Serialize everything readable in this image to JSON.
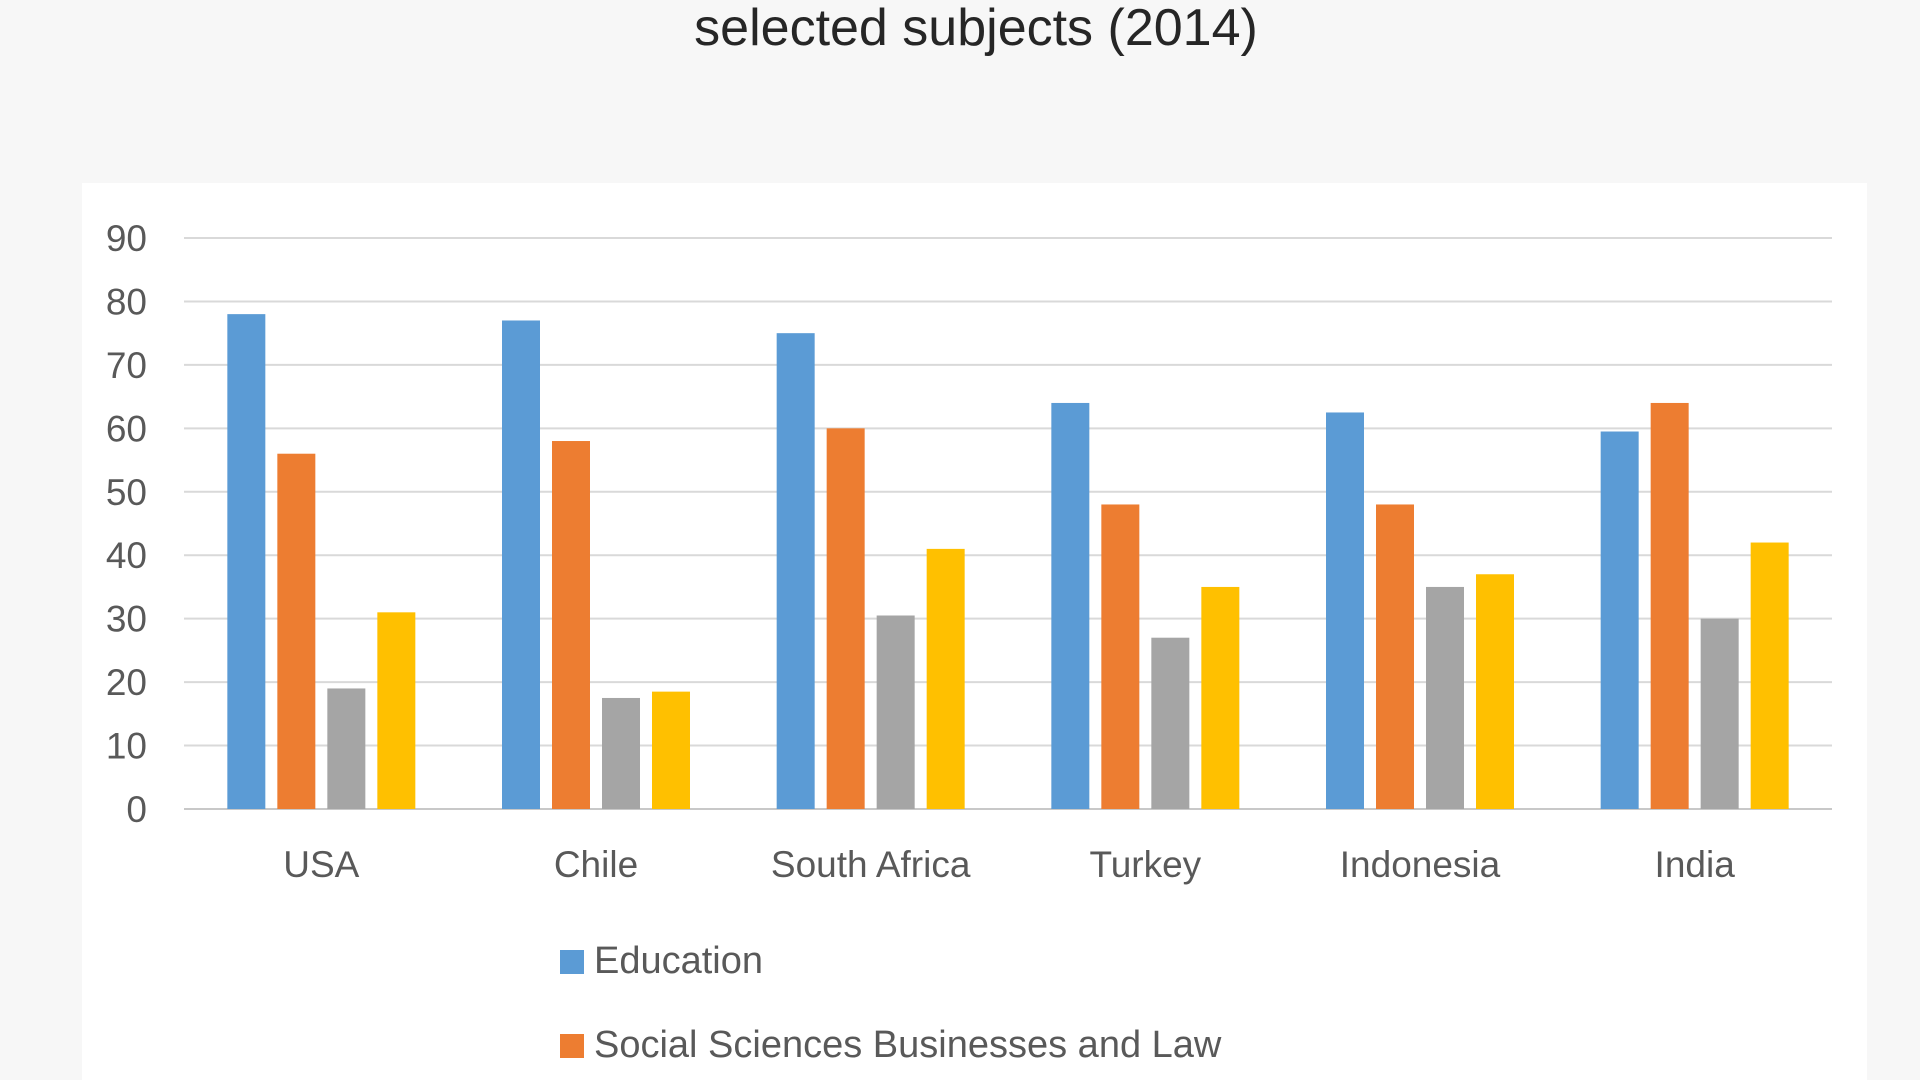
{
  "chart_data": {
    "type": "bar",
    "title": "selected subjects (2014)",
    "categories": [
      "USA",
      "Chile",
      "South Africa",
      "Turkey",
      "Indonesia",
      "India"
    ],
    "series": [
      {
        "name": "Education",
        "color": "#5b9bd5",
        "values": [
          78,
          77,
          75,
          64,
          62.5,
          59.5
        ]
      },
      {
        "name": "Social Sciences Businesses and Law",
        "color": "#ed7d31",
        "values": [
          56,
          58,
          60,
          48,
          48,
          64
        ]
      },
      {
        "color": "#a5a5a5",
        "values": [
          19,
          17.5,
          30.5,
          27,
          35,
          30
        ]
      },
      {
        "color": "#ffc000",
        "values": [
          31,
          18.5,
          41,
          35,
          37,
          42
        ]
      }
    ],
    "ylim": [
      0,
      90
    ],
    "yticks": [
      "0",
      "10",
      "20",
      "30",
      "40",
      "50",
      "60",
      "70",
      "80",
      "90"
    ],
    "grid": true,
    "legend_position": "bottom-left"
  }
}
